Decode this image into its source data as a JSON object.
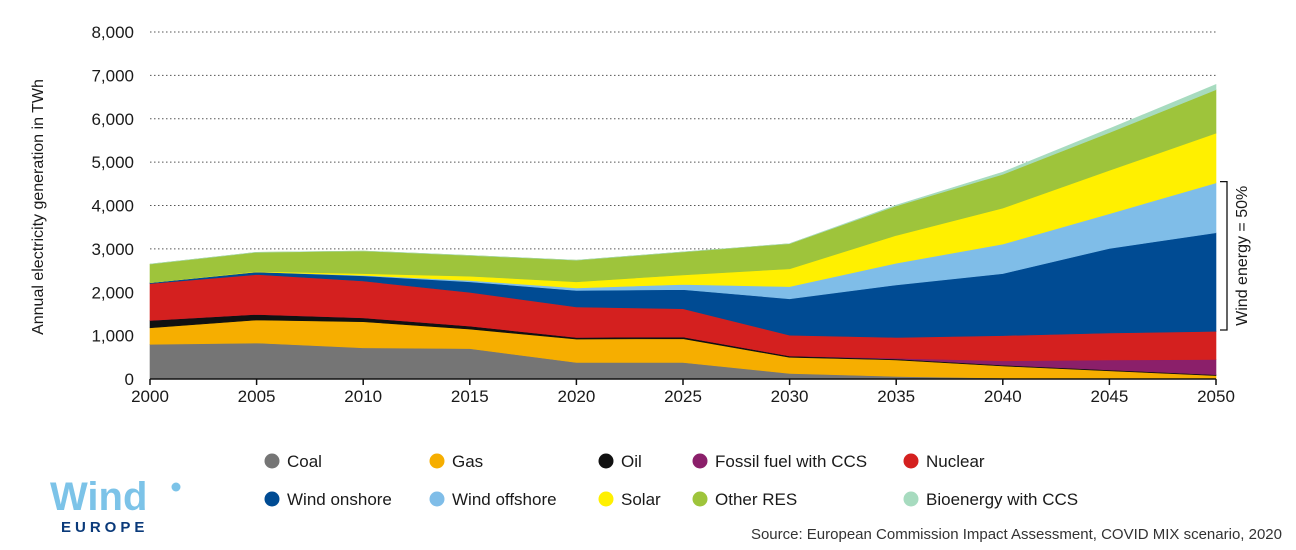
{
  "chart_data": {
    "type": "area",
    "stacked": true,
    "ylabel": "Annual electricity generation in TWh",
    "xlabel": "",
    "x": [
      2000,
      2005,
      2010,
      2015,
      2020,
      2025,
      2030,
      2035,
      2040,
      2045,
      2050
    ],
    "x_tick_labels": [
      "2000",
      "2005",
      "2010",
      "2015",
      "2020",
      "2025",
      "2030",
      "2035",
      "2040",
      "2045",
      "2050"
    ],
    "ylim": [
      0,
      8000
    ],
    "y_ticks": [
      0,
      1000,
      2000,
      3000,
      4000,
      5000,
      6000,
      7000,
      8000
    ],
    "y_tick_labels": [
      "0",
      "1,000",
      "2,000",
      "3,000",
      "4,000",
      "5,000",
      "6,000",
      "7,000",
      "8,000"
    ],
    "grid": "horizontal-dotted",
    "series": [
      {
        "name": "Coal",
        "color": "#757575",
        "values": [
          800,
          830,
          720,
          700,
          380,
          380,
          130,
          60,
          20,
          10,
          0
        ]
      },
      {
        "name": "Gas",
        "color": "#f6ae00",
        "values": [
          380,
          530,
          600,
          450,
          540,
          550,
          370,
          380,
          280,
          180,
          80
        ]
      },
      {
        "name": "Oil",
        "color": "#111111",
        "values": [
          170,
          130,
          90,
          70,
          40,
          40,
          30,
          20,
          20,
          20,
          20
        ]
      },
      {
        "name": "Fossil fuel with CCS",
        "color": "#8b1f6a",
        "values": [
          0,
          0,
          0,
          0,
          0,
          0,
          0,
          20,
          100,
          230,
          350
        ]
      },
      {
        "name": "Nuclear",
        "color": "#d4201f",
        "values": [
          850,
          920,
          850,
          780,
          700,
          650,
          480,
          480,
          580,
          620,
          650
        ]
      },
      {
        "name": "Wind onshore",
        "color": "#004b93",
        "values": [
          20,
          60,
          120,
          240,
          380,
          440,
          840,
          1210,
          1430,
          1950,
          2270
        ]
      },
      {
        "name": "Wind offshore",
        "color": "#7fbde8",
        "values": [
          0,
          0,
          10,
          30,
          60,
          120,
          280,
          500,
          680,
          800,
          1150
        ]
      },
      {
        "name": "Solar",
        "color": "#fff000",
        "values": [
          0,
          10,
          40,
          100,
          140,
          220,
          410,
          640,
          830,
          1000,
          1150
        ]
      },
      {
        "name": "Other RES",
        "color": "#9ec43b",
        "values": [
          430,
          440,
          520,
          480,
          500,
          530,
          580,
          680,
          780,
          870,
          1000
        ]
      },
      {
        "name": "Bioenergy with CCS",
        "color": "#a7dbbf",
        "values": [
          0,
          0,
          0,
          0,
          0,
          0,
          0,
          20,
          50,
          90,
          120
        ]
      }
    ],
    "annotation": {
      "text": "Wind energy = 50%",
      "x": 2050,
      "y_range": [
        1130,
        4550
      ]
    },
    "legend": {
      "position": "bottom",
      "items": [
        "Coal",
        "Gas",
        "Oil",
        "Fossil fuel with CCS",
        "Nuclear",
        "Wind onshore",
        "Wind offshore",
        "Solar",
        "Other RES",
        "Bioenergy with CCS"
      ]
    }
  },
  "source": "Source: European Commission Impact Assessment, COVID MIX scenario, 2020",
  "logo": {
    "line1": "Wind",
    "line2": "EUROPE"
  }
}
